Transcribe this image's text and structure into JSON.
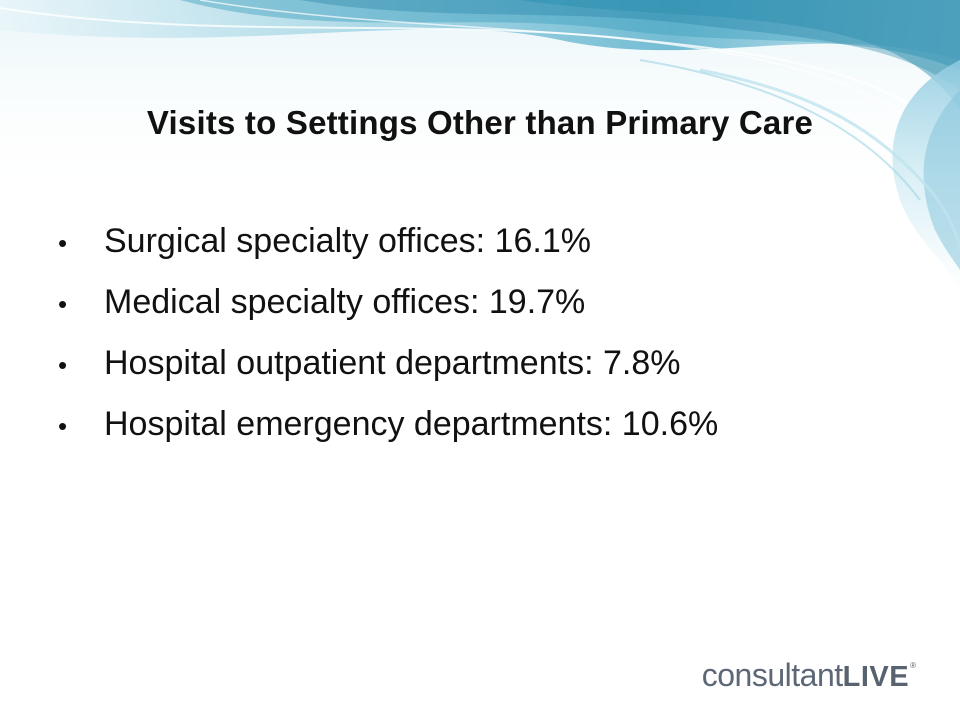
{
  "slide": {
    "title": "Visits to Settings Other than Primary Care",
    "bullets": [
      {
        "text": "Surgical specialty offices: 16.1%"
      },
      {
        "text": "Medical specialty offices: 19.7%"
      },
      {
        "text": "Hospital outpatient departments: 7.8%"
      },
      {
        "text": "Hospital emergency departments: 10.6%"
      }
    ],
    "bullet_glyph": "•"
  },
  "logo": {
    "light": "consultant",
    "bold": "LIVE",
    "mark": "®"
  },
  "colors": {
    "background": "#ffffff",
    "text": "#111111",
    "wave_teal": "#2a8fb0",
    "wave_light": "#bfe3ee",
    "logo_gray": "#5d6775"
  }
}
